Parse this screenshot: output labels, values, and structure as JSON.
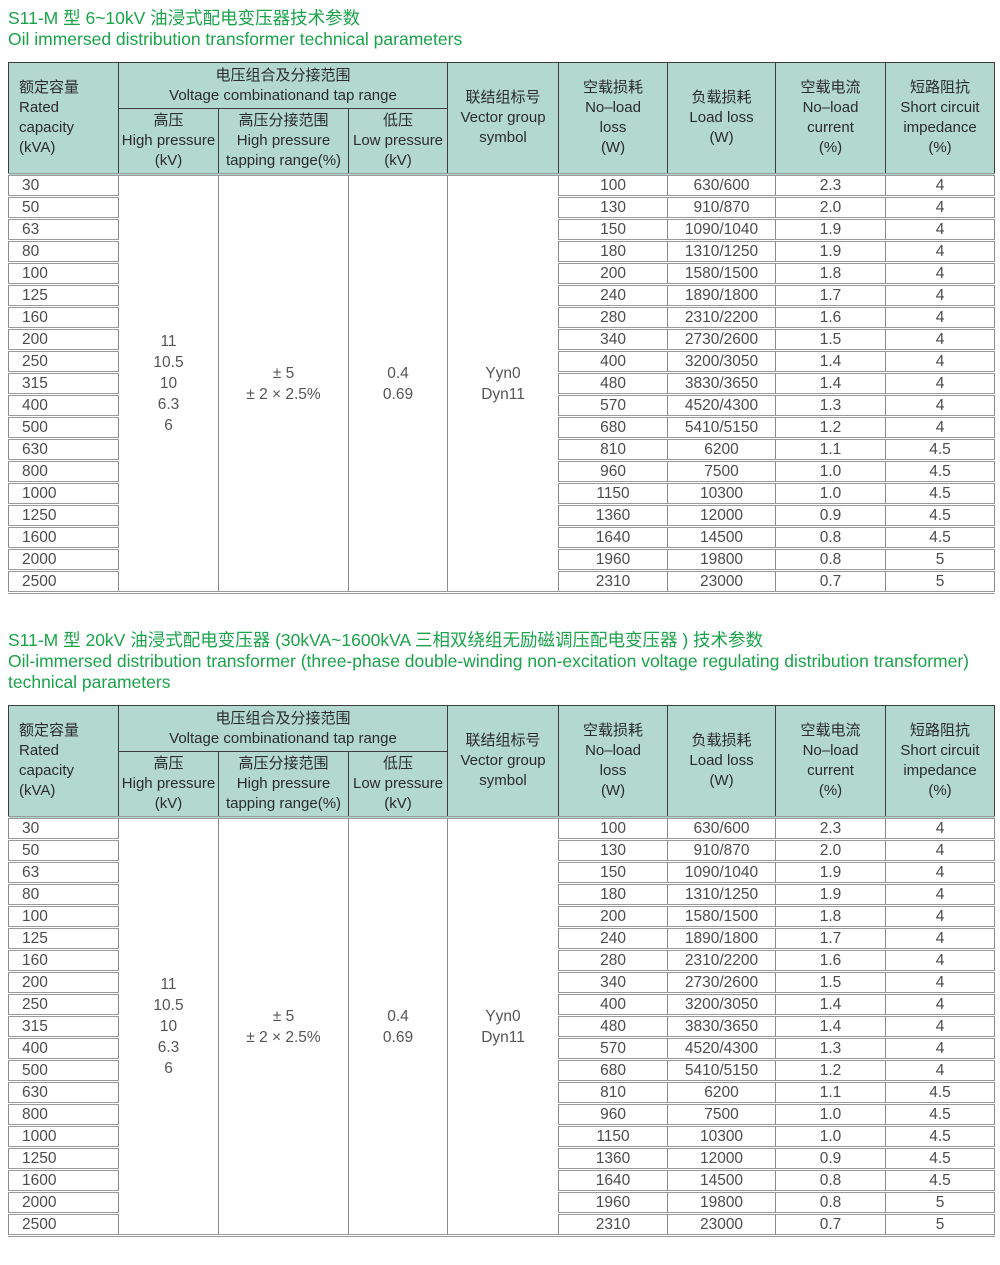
{
  "colors": {
    "title_green": "#1aa34a",
    "header_bg": "#b2d8d0"
  },
  "sections": [
    {
      "title_zh": "S11-M 型 6~10kV 油浸式配电变压器技术参数",
      "title_en": "Oil immersed distribution transformer technical parameters"
    },
    {
      "title_zh": "S11-M 型 20kV 油浸式配电变压器 (30kVA~1600kVA 三相双绕组无励磁调压配电变压器 ) 技术参数",
      "title_en": "Oil-immersed distribution transformer (three-phase double-winding non-excitation voltage regulating distribution transformer) technical parameters"
    }
  ],
  "table": {
    "group_header": "电压组合及分接范围\nVoltage combinationand tap range",
    "columns": {
      "rated_capacity": "额定容量\nRated\ncapacity\n(kVA)",
      "high_pressure": "高压\nHigh pressure\n(kV)",
      "tapping_range": "高压分接范围\nHigh pressure\ntapping range(%)",
      "low_pressure": "低压\nLow pressure\n(kV)",
      "vector_group": "联结组标号\nVector group\nsymbol",
      "no_load_loss": "空载损耗\nNo–load\nloss\n(W)",
      "load_loss": "负载损耗\nLoad loss\n(W)",
      "no_load_current": "空载电流\nNo–load\ncurrent\n(%)",
      "short_circuit": "短路阻抗\nShort circuit\nimpedance\n(%)"
    },
    "merged": {
      "high_pressure": "11\n10.5\n10\n6.3\n6",
      "tapping_range": "± 5\n± 2 × 2.5%",
      "low_pressure": "0.4\n0.69",
      "vector_group": "Yyn0\nDyn11"
    },
    "rows": [
      [
        "30",
        "100",
        "630/600",
        "2.3",
        "4"
      ],
      [
        "50",
        "130",
        "910/870",
        "2.0",
        "4"
      ],
      [
        "63",
        "150",
        "1090/1040",
        "1.9",
        "4"
      ],
      [
        "80",
        "180",
        "1310/1250",
        "1.9",
        "4"
      ],
      [
        "100",
        "200",
        "1580/1500",
        "1.8",
        "4"
      ],
      [
        "125",
        "240",
        "1890/1800",
        "1.7",
        "4"
      ],
      [
        "160",
        "280",
        "2310/2200",
        "1.6",
        "4"
      ],
      [
        "200",
        "340",
        "2730/2600",
        "1.5",
        "4"
      ],
      [
        "250",
        "400",
        "3200/3050",
        "1.4",
        "4"
      ],
      [
        "315",
        "480",
        "3830/3650",
        "1.4",
        "4"
      ],
      [
        "400",
        "570",
        "4520/4300",
        "1.3",
        "4"
      ],
      [
        "500",
        "680",
        "5410/5150",
        "1.2",
        "4"
      ],
      [
        "630",
        "810",
        "6200",
        "1.1",
        "4.5"
      ],
      [
        "800",
        "960",
        "7500",
        "1.0",
        "4.5"
      ],
      [
        "1000",
        "1150",
        "10300",
        "1.0",
        "4.5"
      ],
      [
        "1250",
        "1360",
        "12000",
        "0.9",
        "4.5"
      ],
      [
        "1600",
        "1640",
        "14500",
        "0.8",
        "4.5"
      ],
      [
        "2000",
        "1960",
        "19800",
        "0.8",
        "5"
      ],
      [
        "2500",
        "2310",
        "23000",
        "0.7",
        "5"
      ]
    ]
  }
}
